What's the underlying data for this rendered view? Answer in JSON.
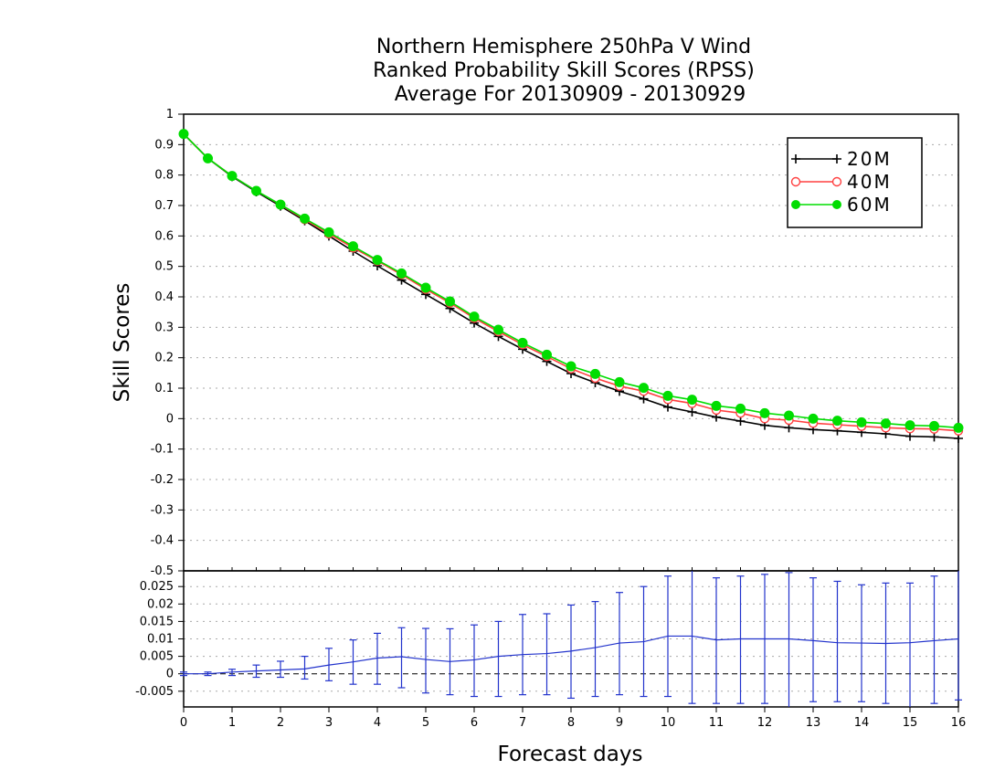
{
  "chart_data": [
    {
      "type": "line",
      "title": "Northern Hemisphere 250hPa V Wind",
      "subtitle": "Ranked Probability Skill Scores (RPSS)",
      "subtitle2": "Average For 20130909 - 20130929",
      "xlabel": "Forecast days",
      "ylabel": "Skill Scores",
      "xlim": [
        0,
        16
      ],
      "ylim": [
        -0.5,
        1
      ],
      "yticks": [
        "-0.4",
        "-0.3",
        "-0.2",
        "-0.1",
        "0",
        "0.1",
        "0.2",
        "0.3",
        "0.4",
        "0.5",
        "0.6",
        "0.7",
        "0.8",
        "0.9",
        "1"
      ],
      "ytick_values": [
        -0.4,
        -0.3,
        -0.2,
        -0.1,
        0,
        0.1,
        0.2,
        0.3,
        0.4,
        0.5,
        0.6,
        0.7,
        0.8,
        0.9,
        1
      ],
      "grid": true,
      "legend_position": "top-right",
      "x": [
        0,
        0.5,
        1,
        1.5,
        2,
        2.5,
        3,
        3.5,
        4,
        4.5,
        5,
        5.5,
        6,
        6.5,
        7,
        7.5,
        8,
        8.5,
        9,
        9.5,
        10,
        10.5,
        11,
        11.5,
        12,
        12.5,
        13,
        13.5,
        14,
        14.5,
        15,
        15.5,
        16
      ],
      "series": [
        {
          "name": "20M",
          "color": "#000000",
          "marker": "plus",
          "values": [
            0.935,
            0.855,
            0.795,
            0.745,
            0.698,
            0.65,
            0.6,
            0.55,
            0.502,
            0.455,
            0.408,
            0.362,
            0.314,
            0.27,
            0.228,
            0.188,
            0.148,
            0.118,
            0.09,
            0.065,
            0.038,
            0.022,
            0.005,
            -0.008,
            -0.022,
            -0.03,
            -0.036,
            -0.04,
            -0.045,
            -0.05,
            -0.058,
            -0.06,
            -0.065
          ]
        },
        {
          "name": "40M",
          "color": "#ff4040",
          "marker": "open-circle",
          "values": [
            0.935,
            0.855,
            0.797,
            0.748,
            0.702,
            0.654,
            0.607,
            0.561,
            0.518,
            0.473,
            0.425,
            0.38,
            0.33,
            0.286,
            0.243,
            0.204,
            0.164,
            0.133,
            0.107,
            0.09,
            0.063,
            0.05,
            0.028,
            0.018,
            0.0,
            -0.005,
            -0.015,
            -0.02,
            -0.025,
            -0.03,
            -0.033,
            -0.034,
            -0.04
          ]
        },
        {
          "name": "60M",
          "color": "#00dd00",
          "marker": "filled-circle",
          "values": [
            0.935,
            0.855,
            0.797,
            0.748,
            0.703,
            0.657,
            0.612,
            0.566,
            0.521,
            0.477,
            0.43,
            0.385,
            0.335,
            0.292,
            0.249,
            0.21,
            0.172,
            0.147,
            0.12,
            0.101,
            0.075,
            0.062,
            0.042,
            0.033,
            0.018,
            0.01,
            0.0,
            -0.007,
            -0.012,
            -0.016,
            -0.022,
            -0.024,
            -0.03
          ]
        }
      ]
    },
    {
      "type": "line",
      "xlabel": "Forecast days",
      "xlim": [
        0,
        16
      ],
      "xticks": [
        "0",
        "1",
        "2",
        "3",
        "4",
        "5",
        "6",
        "7",
        "8",
        "9",
        "10",
        "11",
        "12",
        "13",
        "14",
        "15",
        "16"
      ],
      "xtick_values": [
        0,
        1,
        2,
        3,
        4,
        5,
        6,
        7,
        8,
        9,
        10,
        11,
        12,
        13,
        14,
        15,
        16
      ],
      "ylim": [
        -0.0095,
        0.0295
      ],
      "yticks": [
        "-0.005",
        "0",
        "0.005",
        "0.01",
        "0.015",
        "0.02",
        "0.025"
      ],
      "ytick_values": [
        -0.005,
        0,
        0.005,
        0.01,
        0.015,
        0.02,
        0.025
      ],
      "grid": true,
      "x": [
        0,
        0.5,
        1,
        1.5,
        2,
        2.5,
        3,
        3.5,
        4,
        4.5,
        5,
        5.5,
        6,
        6.5,
        7,
        7.5,
        8,
        8.5,
        9,
        9.5,
        10,
        10.5,
        11,
        11.5,
        12,
        12.5,
        13,
        13.5,
        14,
        14.5,
        15,
        15.5,
        16
      ],
      "series": [
        {
          "color": "#2233cc",
          "values": [
            0.0,
            0.0,
            0.0005,
            0.0008,
            0.0011,
            0.0014,
            0.0025,
            0.0034,
            0.0045,
            0.0049,
            0.0041,
            0.0035,
            0.004,
            0.005,
            0.0055,
            0.0058,
            0.0065,
            0.0075,
            0.0088,
            0.0092,
            0.0108,
            0.0108,
            0.0097,
            0.01,
            0.01,
            0.01,
            0.0095,
            0.0089,
            0.0088,
            0.0087,
            0.0089,
            0.0095,
            0.01
          ],
          "error_low": [
            -0.0005,
            -0.0005,
            -0.0005,
            -0.001,
            -0.001,
            -0.0015,
            -0.002,
            -0.003,
            -0.003,
            -0.004,
            -0.0055,
            -0.006,
            -0.0065,
            -0.0065,
            -0.006,
            -0.006,
            -0.007,
            -0.0065,
            -0.006,
            -0.0065,
            -0.0065,
            -0.0085,
            -0.0085,
            -0.0085,
            -0.0085,
            -0.0095,
            -0.008,
            -0.008,
            -0.008,
            -0.0085,
            -0.0095,
            -0.0085,
            -0.0075
          ],
          "error_high": [
            0.0005,
            0.0005,
            0.0013,
            0.0025,
            0.0036,
            0.005,
            0.0073,
            0.0097,
            0.0116,
            0.0132,
            0.013,
            0.0129,
            0.014,
            0.015,
            0.017,
            0.0172,
            0.0197,
            0.0207,
            0.0233,
            0.025,
            0.028,
            0.0295,
            0.0275,
            0.028,
            0.0285,
            0.029,
            0.0275,
            0.0265,
            0.0255,
            0.026,
            0.026,
            0.028,
            0.0295
          ]
        }
      ]
    }
  ]
}
